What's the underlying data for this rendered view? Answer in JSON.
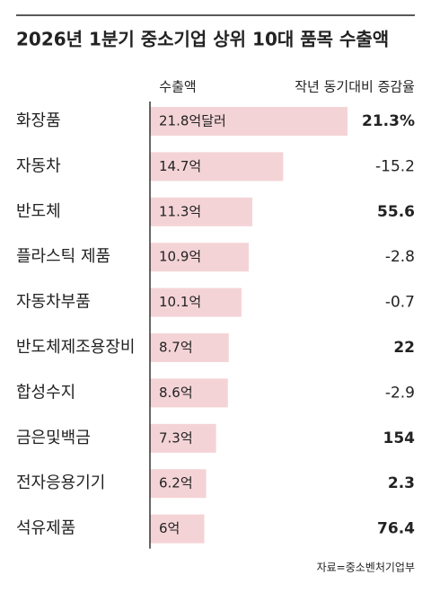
{
  "chart_data": {
    "type": "bar",
    "orientation": "horizontal",
    "title": "2026년 1분기 중소기업 상위 10대 품목 수출액",
    "value_header": "수출액",
    "change_header": "작년 동기대비 증감율",
    "categories": [
      "화장품",
      "자동차",
      "반도체",
      "플라스틱 제품",
      "자동차부품",
      "반도체제조용장비",
      "합성수지",
      "금은및백금",
      "전자응용기기",
      "석유제품"
    ],
    "values": [
      21.8,
      14.7,
      11.3,
      10.9,
      10.1,
      8.7,
      8.6,
      7.3,
      6.2,
      6
    ],
    "value_labels": [
      "21.8억달러",
      "14.7억",
      "11.3억",
      "10.9억",
      "10.1억",
      "8.7억",
      "8.6억",
      "7.3억",
      "6.2억",
      "6억"
    ],
    "color": "#f4d3d6",
    "change": {
      "values": [
        21.3,
        -15.2,
        55.6,
        -2.8,
        -0.7,
        22,
        -2.9,
        154,
        2.3,
        76.4
      ],
      "value_labels": [
        "21.3%",
        "-15.2",
        "55.6",
        "-2.8",
        "-0.7",
        "22",
        "-2.9",
        "154",
        "2.3",
        "76.4"
      ],
      "positive_color": "#b0204a",
      "negative_color": "#555555"
    },
    "source": "자료=중소벤처기업부"
  }
}
